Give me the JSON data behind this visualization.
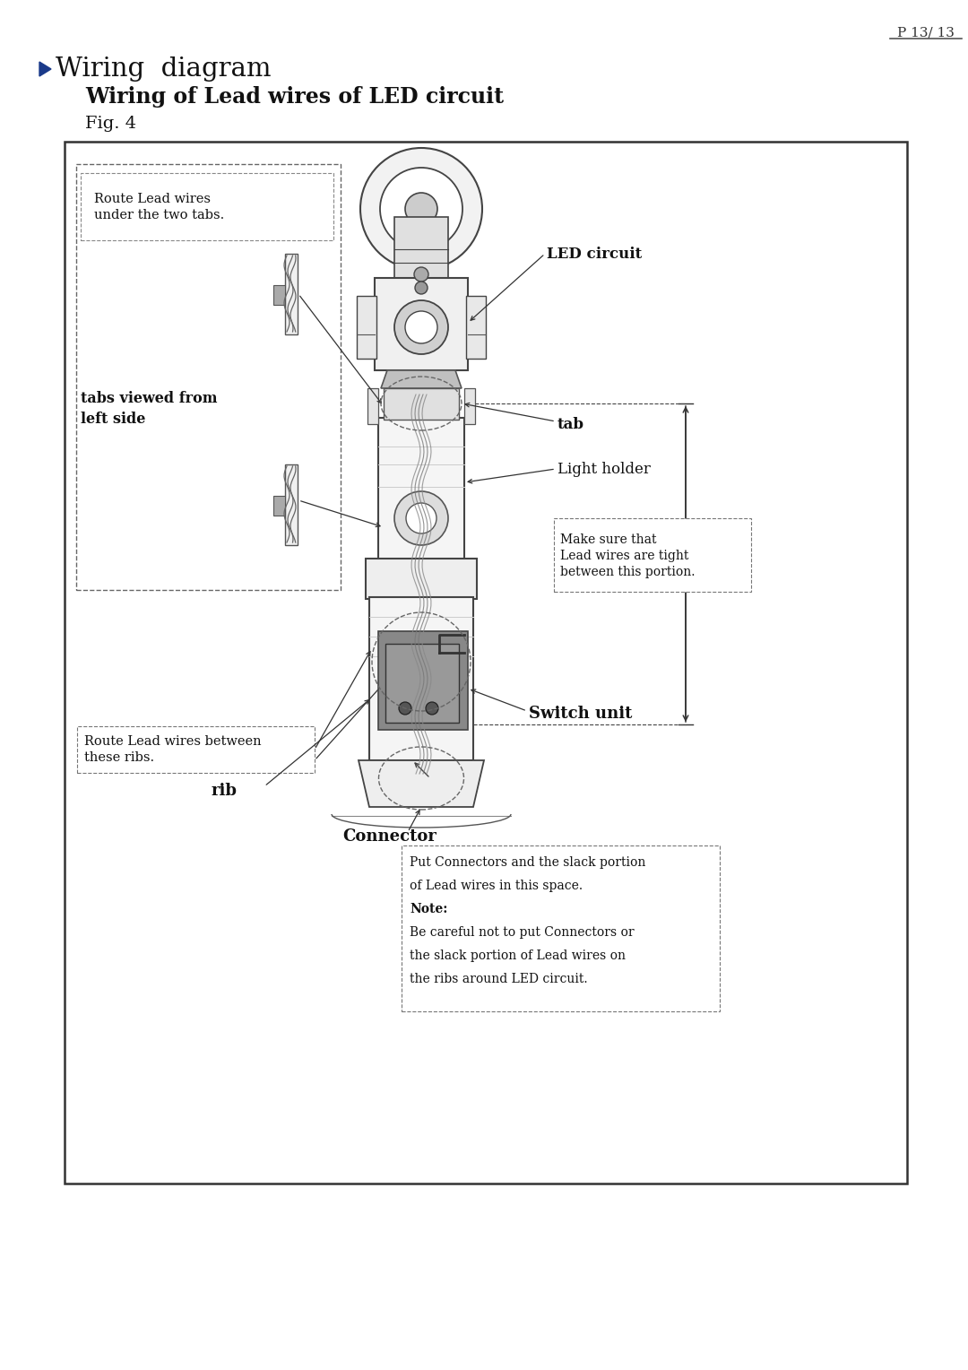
{
  "page_color": "#ffffff",
  "page_number": "P 13/ 13",
  "title_arrow_color": "#1a3a8a",
  "title": "Wiring  diagram",
  "subtitle": "Wiring of Lead wires of LED circuit",
  "fig_label": "Fig. 4",
  "labels": {
    "LED_circuit": "LED circuit",
    "tab": "tab",
    "light_holder": "Light holder",
    "tabs_viewed": "tabs viewed from\nleft side",
    "route_lead_tabs": "Route Lead wires\nunder the two tabs.",
    "route_lead_ribs": "Route Lead wires between\nthese ribs.",
    "rib": "rib",
    "switch_unit": "Switch unit",
    "connector": "Connector",
    "make_sure": "Make sure that\nLead wires are tight\nbetween this portion.",
    "note_line1": "Put Connectors and the slack portion",
    "note_line2": "of Lead wires in this space.",
    "note_line3": "Note:",
    "note_line4": "Be careful not to put Connectors or",
    "note_line5": "the slack portion of Lead wires on",
    "note_line6": "the ribs around LED circuit."
  }
}
